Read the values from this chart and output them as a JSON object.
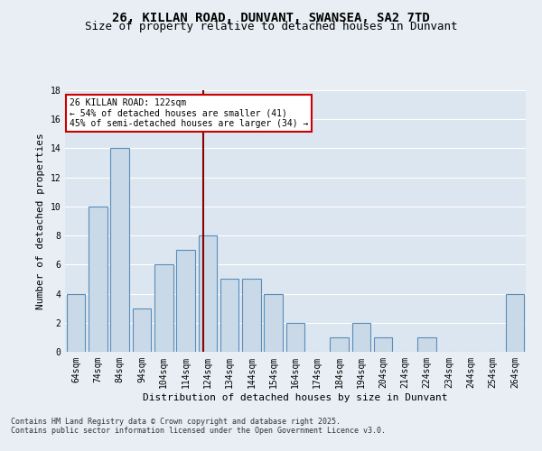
{
  "title": "26, KILLAN ROAD, DUNVANT, SWANSEA, SA2 7TD",
  "subtitle": "Size of property relative to detached houses in Dunvant",
  "xlabel": "Distribution of detached houses by size in Dunvant",
  "ylabel": "Number of detached properties",
  "footnote1": "Contains HM Land Registry data © Crown copyright and database right 2025.",
  "footnote2": "Contains public sector information licensed under the Open Government Licence v3.0.",
  "bar_labels": [
    "64sqm",
    "74sqm",
    "84sqm",
    "94sqm",
    "104sqm",
    "114sqm",
    "124sqm",
    "134sqm",
    "144sqm",
    "154sqm",
    "164sqm",
    "174sqm",
    "184sqm",
    "194sqm",
    "204sqm",
    "214sqm",
    "224sqm",
    "234sqm",
    "244sqm",
    "254sqm",
    "264sqm"
  ],
  "bar_values": [
    4,
    10,
    14,
    3,
    6,
    7,
    8,
    5,
    5,
    4,
    2,
    0,
    1,
    2,
    1,
    0,
    1,
    0,
    0,
    0,
    4
  ],
  "bar_color": "#c9d9e8",
  "bar_edge_color": "#5b8db8",
  "bar_edge_width": 0.8,
  "vline_color": "#8b0000",
  "annotation_text": "26 KILLAN ROAD: 122sqm\n← 54% of detached houses are smaller (41)\n45% of semi-detached houses are larger (34) →",
  "annotation_box_color": "#ffffff",
  "annotation_box_edge": "#cc0000",
  "ylim": [
    0,
    18
  ],
  "yticks": [
    0,
    2,
    4,
    6,
    8,
    10,
    12,
    14,
    16,
    18
  ],
  "background_color": "#e8eef4",
  "plot_bg_color": "#dce6f0",
  "grid_color": "#ffffff",
  "title_fontsize": 10,
  "subtitle_fontsize": 9,
  "xlabel_fontsize": 8,
  "ylabel_fontsize": 8,
  "tick_fontsize": 7,
  "annot_fontsize": 7,
  "footnote_fontsize": 6
}
